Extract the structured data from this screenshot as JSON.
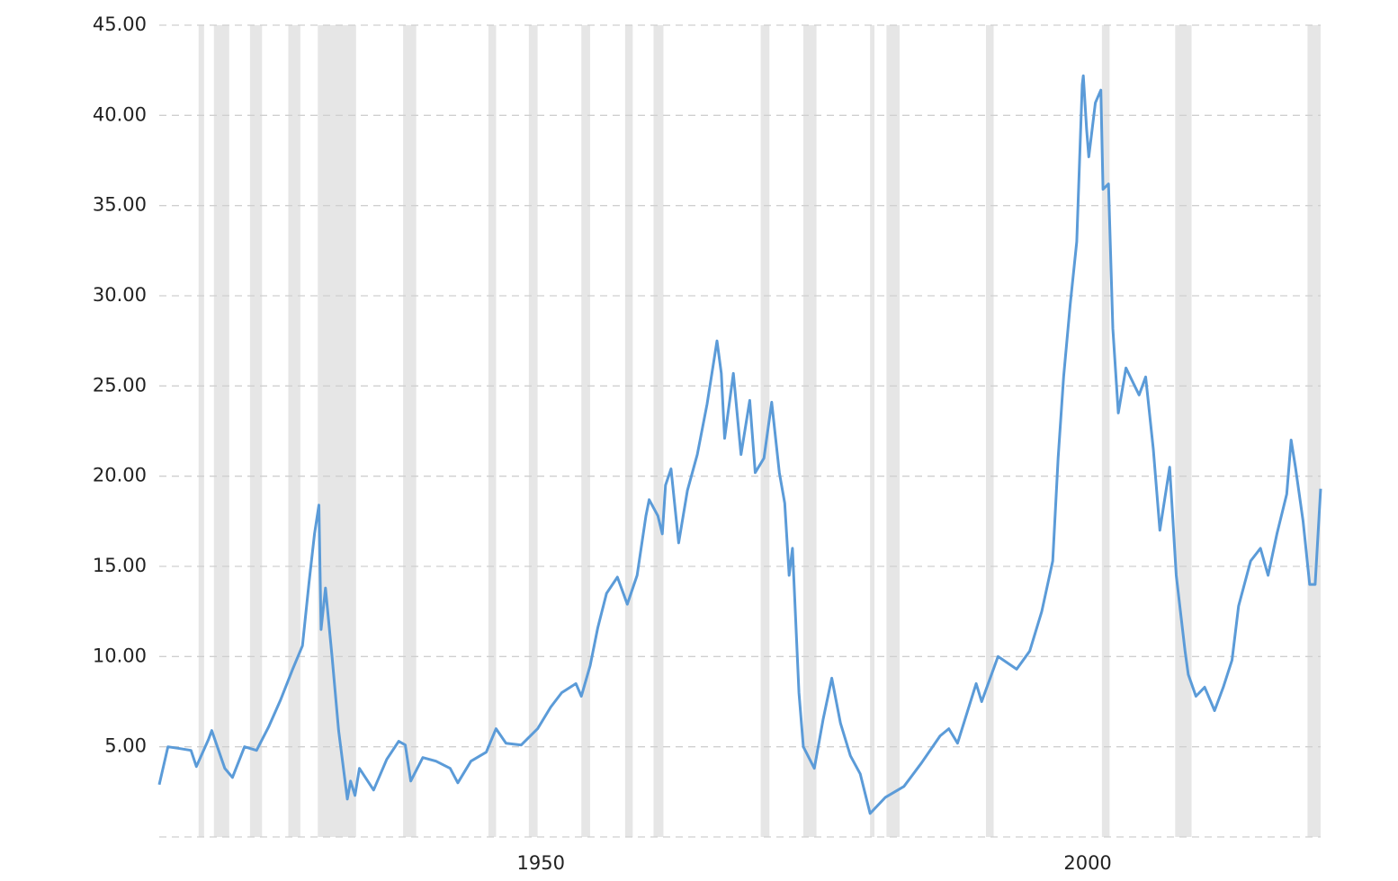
{
  "chart_data": {
    "type": "line",
    "x": [
      1915.1,
      1915.9,
      1917.0,
      1918.0,
      1918.5,
      1919.6,
      1919.9,
      1921.1,
      1921.8,
      1922.9,
      1924.0,
      1925.1,
      1926.2,
      1927.3,
      1928.2,
      1928.8,
      1929.3,
      1929.7,
      1929.9,
      1930.3,
      1930.9,
      1931.5,
      1932.3,
      1932.6,
      1933.0,
      1933.4,
      1934.7,
      1935.9,
      1937.0,
      1937.6,
      1938.1,
      1939.2,
      1940.4,
      1941.7,
      1942.4,
      1943.6,
      1945.0,
      1945.9,
      1946.8,
      1948.2,
      1949.7,
      1950.9,
      1951.9,
      1953.2,
      1953.7,
      1954.5,
      1955.2,
      1956.0,
      1957.0,
      1957.9,
      1958.8,
      1959.6,
      1959.9,
      1960.7,
      1961.1,
      1961.4,
      1961.9,
      1962.6,
      1963.4,
      1964.3,
      1965.2,
      1965.9,
      1966.1,
      1966.5,
      1966.8,
      1967.6,
      1968.3,
      1969.1,
      1969.6,
      1970.4,
      1971.1,
      1971.8,
      1972.3,
      1972.7,
      1973.0,
      1973.6,
      1974.0,
      1975.0,
      1975.8,
      1976.6,
      1977.4,
      1978.3,
      1979.2,
      1980.1,
      1981.5,
      1983.2,
      1984.8,
      1986.5,
      1987.3,
      1988.1,
      1989.8,
      1990.3,
      1991.8,
      1993.5,
      1994.7,
      1995.8,
      1996.8,
      1997.3,
      1997.8,
      1998.4,
      1999.0,
      1999.5,
      1999.6,
      1999.9,
      2000.1,
      2000.7,
      2001.2,
      2001.4,
      2001.9,
      2002.3,
      2002.8,
      2003.5,
      2004.7,
      2005.3,
      2006.0,
      2006.6,
      2007.5,
      2008.1,
      2008.9,
      2009.2,
      2009.9,
      2010.7,
      2011.6,
      2012.4,
      2013.2,
      2013.8,
      2014.9,
      2015.8,
      2016.5,
      2017.3,
      2018.2,
      2018.6,
      2019.0,
      2019.7,
      2020.3,
      2020.8,
      2021.3
    ],
    "series": [
      {
        "color": "#5b9bd8",
        "values": [
          2.9,
          5.0,
          4.9,
          4.8,
          3.9,
          5.4,
          5.9,
          3.8,
          3.3,
          5.0,
          4.8,
          6.1,
          7.6,
          9.3,
          10.6,
          14.1,
          16.8,
          18.4,
          11.5,
          13.8,
          10.0,
          5.9,
          2.1,
          3.1,
          2.3,
          3.8,
          2.6,
          4.3,
          5.3,
          5.1,
          3.1,
          4.4,
          4.2,
          3.8,
          3.0,
          4.2,
          4.7,
          6.0,
          5.2,
          5.1,
          6.0,
          7.2,
          8.0,
          8.5,
          7.8,
          9.5,
          11.6,
          13.5,
          14.4,
          12.9,
          14.5,
          17.8,
          18.7,
          17.8,
          16.8,
          19.5,
          20.4,
          16.3,
          19.2,
          21.2,
          24.0,
          26.7,
          27.5,
          25.7,
          22.1,
          25.7,
          21.2,
          24.2,
          20.2,
          21.0,
          24.1,
          20.2,
          18.5,
          14.5,
          16.0,
          8.0,
          5.0,
          3.8,
          6.5,
          8.8,
          6.3,
          4.5,
          3.5,
          1.3,
          2.2,
          2.8,
          4.1,
          5.6,
          6.0,
          5.2,
          8.5,
          7.5,
          10.0,
          9.3,
          10.3,
          12.5,
          15.3,
          21.0,
          25.5,
          29.5,
          33.0,
          41.7,
          42.2,
          39.2,
          37.7,
          40.7,
          41.4,
          35.9,
          36.2,
          28.2,
          23.5,
          26.0,
          24.5,
          25.5,
          21.5,
          17.0,
          20.5,
          14.5,
          10.3,
          9.0,
          7.8,
          8.3,
          7.0,
          8.3,
          9.8,
          12.8,
          15.3,
          16.0,
          14.5,
          16.8,
          19.0,
          22.0,
          20.5,
          17.5,
          14.0,
          14.0,
          19.3
        ]
      }
    ],
    "shaded_ranges": [
      [
        1918.7,
        1919.2
      ],
      [
        1920.1,
        1921.5
      ],
      [
        1923.4,
        1924.5
      ],
      [
        1926.9,
        1928.0
      ],
      [
        1929.6,
        1933.1
      ],
      [
        1937.4,
        1938.6
      ],
      [
        1945.2,
        1945.9
      ],
      [
        1948.9,
        1949.7
      ],
      [
        1953.7,
        1954.5
      ],
      [
        1957.7,
        1958.4
      ],
      [
        1960.3,
        1961.2
      ],
      [
        1970.1,
        1970.9
      ],
      [
        1974.0,
        1975.2
      ],
      [
        1980.1,
        1980.5
      ],
      [
        1981.6,
        1982.8
      ],
      [
        1990.7,
        1991.4
      ],
      [
        2001.3,
        2002.0
      ],
      [
        2008.0,
        2009.5
      ],
      [
        2020.1,
        2021.3
      ]
    ],
    "shade_color": "#e6e6e6",
    "xlim": [
      1915.1,
      2021.3
    ],
    "xticks": [
      1950,
      2000
    ],
    "ylim": [
      0,
      45
    ],
    "yticks": [
      {
        "value": 5,
        "label": "5.00"
      },
      {
        "value": 10,
        "label": "10.00"
      },
      {
        "value": 15,
        "label": "15.00"
      },
      {
        "value": 20,
        "label": "20.00"
      },
      {
        "value": 25,
        "label": "25.00"
      },
      {
        "value": 30,
        "label": "30.00"
      },
      {
        "value": 35,
        "label": "35.00"
      },
      {
        "value": 40,
        "label": "40.00"
      },
      {
        "value": 45,
        "label": "45.00"
      }
    ],
    "grid": true
  }
}
